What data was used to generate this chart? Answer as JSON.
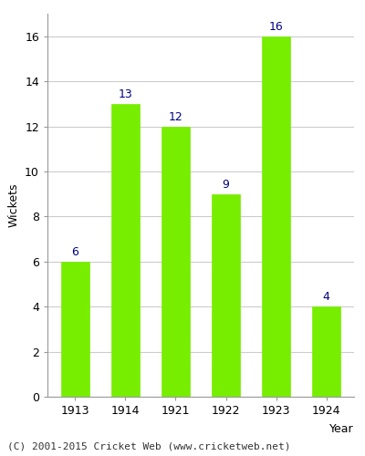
{
  "years": [
    "1913",
    "1914",
    "1921",
    "1922",
    "1923",
    "1924"
  ],
  "wickets": [
    6,
    13,
    12,
    9,
    16,
    4
  ],
  "bar_color": "#77ee00",
  "bar_edge_color": "#77ee00",
  "label_color": "#000080",
  "xlabel": "Year",
  "ylabel": "Wickets",
  "ylim": [
    0,
    17
  ],
  "yticks": [
    0,
    2,
    4,
    6,
    8,
    10,
    12,
    14,
    16
  ],
  "footer": "(C) 2001-2015 Cricket Web (www.cricketweb.net)",
  "background_color": "#ffffff",
  "axes_background_color": "#ffffff",
  "label_fontsize": 9,
  "axis_label_fontsize": 9,
  "footer_fontsize": 8,
  "bar_width": 0.55
}
